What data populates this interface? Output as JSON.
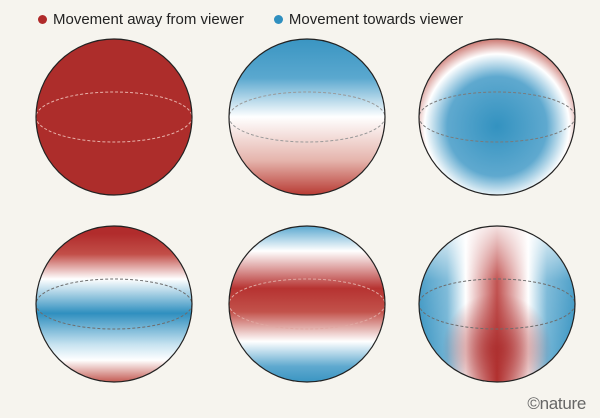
{
  "legend": {
    "away_label": "Movement away from viewer",
    "towards_label": "Movement towards viewer",
    "away_color": "#b02a2a",
    "towards_color": "#2f8fbf"
  },
  "spheres": [
    {
      "name": "sphere-uniform-away"
    },
    {
      "name": "sphere-blue-top-red-bottom"
    },
    {
      "name": "sphere-red-rim-blue-center"
    },
    {
      "name": "sphere-red-poles-blue-band"
    },
    {
      "name": "sphere-red-equator-blue-poles"
    },
    {
      "name": "sphere-red-vertical-band"
    }
  ],
  "credit": "©nature"
}
